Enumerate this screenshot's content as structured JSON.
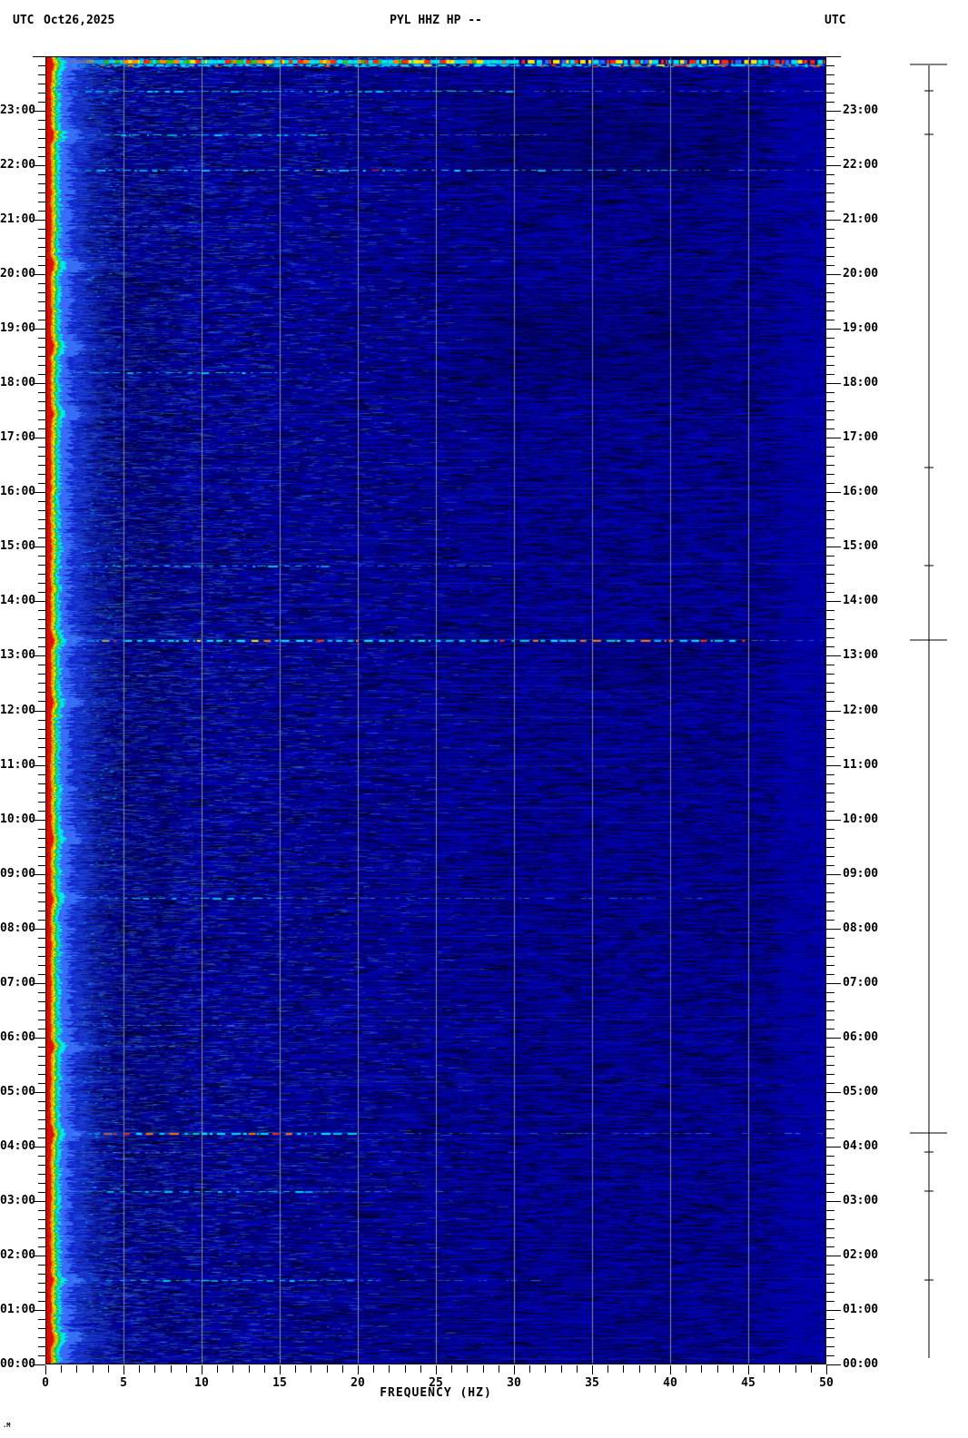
{
  "header": {
    "left_label": "UTC",
    "date": "Oct26,2025",
    "title": "PYL HHZ HP --",
    "right_label": "UTC"
  },
  "x_axis": {
    "title": "FREQUENCY (HZ)",
    "min_hz": 0,
    "max_hz": 50,
    "major_step_hz": 5,
    "minor_step_hz": 1,
    "labels": [
      "0",
      "5",
      "10",
      "15",
      "20",
      "25",
      "30",
      "35",
      "40",
      "45",
      "50"
    ]
  },
  "y_axis": {
    "unit": "UTC",
    "minor_step_minutes": 10,
    "hour_labels": [
      "23:00",
      "22:00",
      "21:00",
      "20:00",
      "19:00",
      "18:00",
      "17:00",
      "16:00",
      "15:00",
      "14:00",
      "13:00",
      "12:00",
      "11:00",
      "10:00",
      "09:00",
      "08:00",
      "07:00",
      "06:00",
      "05:00",
      "04:00",
      "03:00",
      "02:00",
      "01:00",
      "00:00"
    ]
  },
  "watermark": ".M",
  "colors": {
    "background": "#0000A8",
    "gridline": "#8C8C8C",
    "frame": "#000000",
    "text": "#000000",
    "band_core": "#E01000",
    "band_orange": "#FF8C00",
    "band_yellow": "#FFE800",
    "band_green": "#30D000",
    "band_cyan": "#00E8E8",
    "streak_cyan": "#00F0FF",
    "streak_red": "#FF2A00"
  },
  "chart_data": {
    "type": "heatmap",
    "subtype": "seismic-spectrogram",
    "station_title": "PYL HHZ HP --",
    "date_utc": "Oct26,2025",
    "xlabel": "FREQUENCY (HZ)",
    "x_range_hz": [
      0,
      50
    ],
    "x_gridlines_hz": [
      5,
      10,
      15,
      20,
      25,
      30,
      35,
      40,
      45
    ],
    "time_axis": {
      "direction": "latest-at-top",
      "top": "24:00",
      "bottom": "00:00",
      "tick_minutes": 10
    },
    "colormap": "jet",
    "background_level_color": "#0000A8",
    "persistent_band": {
      "freq_hz": [
        0,
        1.5
      ],
      "description": "continuous high-energy low-frequency band, red core with yellow/green/cyan fringe",
      "burst_times_utc": [
        "23:51",
        "22:34",
        "20:10",
        "18:40",
        "17:27",
        "13:17",
        "12:10",
        "09:40",
        "08:34",
        "05:50",
        "04:15",
        "01:33",
        "00:30"
      ]
    },
    "top_edge_band": {
      "time_utc": "23:50-24:00",
      "extent_hz": [
        0,
        50
      ],
      "description": "bright multicolour line across full bandwidth at top of plot"
    },
    "events": [
      {
        "time_utc": "23:51",
        "strong_to_hz": 50,
        "weak_to_hz": 50,
        "level": "strong",
        "marker": "crossbar",
        "has_red": true
      },
      {
        "time_utc": "23:22",
        "strong_to_hz": 30,
        "weak_to_hz": 50,
        "level": "medium",
        "marker": "tick",
        "has_red": false
      },
      {
        "time_utc": "22:34",
        "strong_to_hz": 18,
        "weak_to_hz": 32,
        "level": "medium",
        "marker": "tick",
        "has_red": false
      },
      {
        "time_utc": "21:55",
        "strong_to_hz": 40,
        "weak_to_hz": 50,
        "level": "medium",
        "marker": "none",
        "has_red": true
      },
      {
        "time_utc": "20:53",
        "strong_to_hz": 10,
        "weak_to_hz": 20,
        "level": "faint",
        "marker": "none",
        "has_red": false
      },
      {
        "time_utc": "18:12",
        "strong_to_hz": 15,
        "weak_to_hz": 22,
        "level": "medium",
        "marker": "none",
        "has_red": false
      },
      {
        "time_utc": "16:27",
        "strong_to_hz": 8,
        "weak_to_hz": 15,
        "level": "faint",
        "marker": "tick",
        "has_red": false
      },
      {
        "time_utc": "14:39",
        "strong_to_hz": 18,
        "weak_to_hz": 28,
        "level": "medium",
        "marker": "tick",
        "has_red": false
      },
      {
        "time_utc": "13:17",
        "strong_to_hz": 45,
        "weak_to_hz": 50,
        "level": "strong",
        "marker": "crossbar",
        "has_red": true
      },
      {
        "time_utc": "12:38",
        "strong_to_hz": 8,
        "weak_to_hz": 14,
        "level": "faint",
        "marker": "none",
        "has_red": false
      },
      {
        "time_utc": "08:34",
        "strong_to_hz": 15,
        "weak_to_hz": 42,
        "level": "medium",
        "marker": "none",
        "has_red": false
      },
      {
        "time_utc": "06:14",
        "strong_to_hz": 12,
        "weak_to_hz": 20,
        "level": "faint",
        "marker": "none",
        "has_red": false
      },
      {
        "time_utc": "05:51",
        "strong_to_hz": 8,
        "weak_to_hz": 14,
        "level": "faint",
        "marker": "none",
        "has_red": false
      },
      {
        "time_utc": "04:15",
        "strong_to_hz": 20,
        "weak_to_hz": 50,
        "level": "strong",
        "marker": "crossbar",
        "has_red": true
      },
      {
        "time_utc": "03:54",
        "strong_to_hz": 8,
        "weak_to_hz": 30,
        "level": "faint",
        "marker": "tick",
        "has_red": false
      },
      {
        "time_utc": "03:11",
        "strong_to_hz": 17,
        "weak_to_hz": 25,
        "level": "medium",
        "marker": "tick",
        "has_red": false
      },
      {
        "time_utc": "01:33",
        "strong_to_hz": 21,
        "weak_to_hz": 32,
        "level": "medium",
        "marker": "tick",
        "has_red": false
      }
    ],
    "dark_patches": [
      {
        "hz": [
          26,
          46
        ],
        "from_utc": "21:35",
        "to_utc": "23:15",
        "strength": 0.5
      },
      {
        "hz": [
          26,
          44
        ],
        "from_utc": "17:45",
        "to_utc": "19:45",
        "strength": 0.4
      },
      {
        "hz": [
          33,
          44
        ],
        "from_utc": "12:20",
        "to_utc": "13:10",
        "strength": 0.35
      },
      {
        "hz": [
          2,
          9
        ],
        "from_utc": "00:00",
        "to_utc": "24:00",
        "strength": 0.35
      }
    ]
  }
}
